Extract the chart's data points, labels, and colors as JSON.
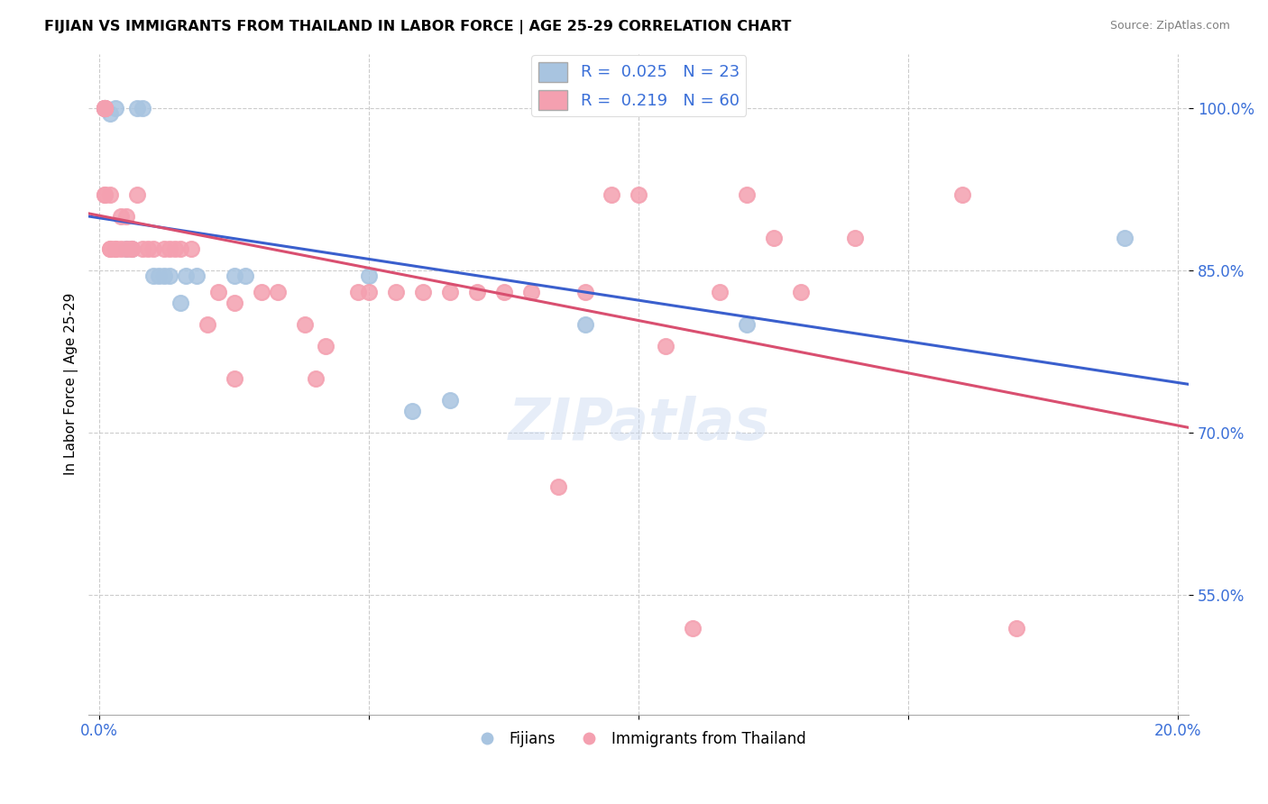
{
  "title": "FIJIAN VS IMMIGRANTS FROM THAILAND IN LABOR FORCE | AGE 25-29 CORRELATION CHART",
  "source": "Source: ZipAtlas.com",
  "ylabel": "In Labor Force | Age 25-29",
  "fijian_x": [
    0.001,
    0.001,
    0.002,
    0.003,
    0.005,
    0.006,
    0.007,
    0.008,
    0.01,
    0.011,
    0.012,
    0.013,
    0.015,
    0.016,
    0.018,
    0.025,
    0.027,
    0.05,
    0.058,
    0.065,
    0.09,
    0.12,
    0.19
  ],
  "fijian_y": [
    1.0,
    1.0,
    0.995,
    1.0,
    0.87,
    0.87,
    1.0,
    1.0,
    0.845,
    0.845,
    0.845,
    0.845,
    0.82,
    0.845,
    0.845,
    0.845,
    0.845,
    0.845,
    0.72,
    0.73,
    0.8,
    0.8,
    0.88
  ],
  "thai_x": [
    0.001,
    0.001,
    0.001,
    0.001,
    0.001,
    0.001,
    0.001,
    0.001,
    0.001,
    0.001,
    0.002,
    0.002,
    0.002,
    0.003,
    0.003,
    0.004,
    0.004,
    0.005,
    0.005,
    0.006,
    0.006,
    0.007,
    0.008,
    0.009,
    0.01,
    0.012,
    0.013,
    0.014,
    0.015,
    0.017,
    0.02,
    0.022,
    0.025,
    0.025,
    0.03,
    0.033,
    0.038,
    0.04,
    0.042,
    0.048,
    0.05,
    0.055,
    0.06,
    0.065,
    0.07,
    0.075,
    0.08,
    0.085,
    0.09,
    0.095,
    0.1,
    0.105,
    0.11,
    0.115,
    0.12,
    0.125,
    0.13,
    0.14,
    0.16,
    0.17
  ],
  "thai_y": [
    1.0,
    1.0,
    1.0,
    1.0,
    1.0,
    1.0,
    1.0,
    1.0,
    0.92,
    0.92,
    0.92,
    0.87,
    0.87,
    0.87,
    0.87,
    0.87,
    0.9,
    0.87,
    0.9,
    0.87,
    0.87,
    0.92,
    0.87,
    0.87,
    0.87,
    0.87,
    0.87,
    0.87,
    0.87,
    0.87,
    0.8,
    0.83,
    0.82,
    0.75,
    0.83,
    0.83,
    0.8,
    0.75,
    0.78,
    0.83,
    0.83,
    0.83,
    0.83,
    0.83,
    0.83,
    0.83,
    0.83,
    0.65,
    0.83,
    0.92,
    0.92,
    0.78,
    0.52,
    0.83,
    0.92,
    0.88,
    0.83,
    0.88,
    0.92,
    0.52
  ],
  "blue_color": "#a8c4e0",
  "pink_color": "#f4a0b0",
  "blue_line_color": "#3a5fcd",
  "pink_line_color": "#d94f70",
  "yticks": [
    0.55,
    0.7,
    0.85,
    1.0
  ],
  "ytick_labels": [
    "55.0%",
    "70.0%",
    "85.0%",
    "100.0%"
  ],
  "xlim": [
    -0.002,
    0.202
  ],
  "ylim": [
    0.44,
    1.05
  ],
  "background_color": "#ffffff",
  "grid_color": "#cccccc"
}
